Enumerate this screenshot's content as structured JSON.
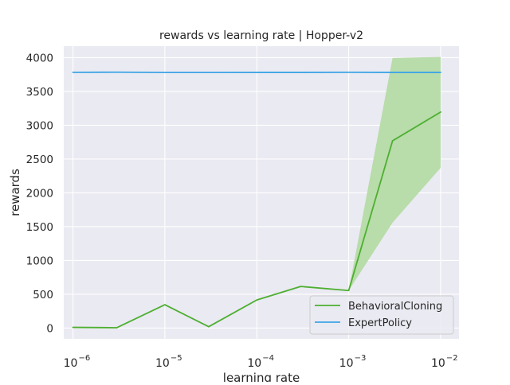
{
  "chart_data": {
    "type": "line",
    "title": "rewards vs learning rate | Hopper-v2",
    "xlabel": "learning rate",
    "ylabel": "rewards",
    "xscale": "log",
    "xlim_exp": [
      -6.1,
      -1.8
    ],
    "ylim": [
      -160,
      4170
    ],
    "x_ticks": [
      {
        "exp": -6,
        "base": "10",
        "sup": "−6"
      },
      {
        "exp": -5,
        "base": "10",
        "sup": "−5"
      },
      {
        "exp": -4,
        "base": "10",
        "sup": "−4"
      },
      {
        "exp": -3,
        "base": "10",
        "sup": "−3"
      },
      {
        "exp": -2,
        "base": "10",
        "sup": "−2"
      }
    ],
    "y_ticks": [
      0,
      500,
      1000,
      1500,
      2000,
      2500,
      3000,
      3500,
      4000
    ],
    "y_tick_labels": [
      "0",
      "500",
      "1000",
      "1500",
      "2000",
      "2500",
      "3000",
      "3500",
      "4000"
    ],
    "x": [
      1e-06,
      3e-06,
      1e-05,
      3e-05,
      0.0001,
      0.0003,
      0.001,
      0.003,
      0.01
    ],
    "series": [
      {
        "name": "BehavioralCloning",
        "color": "#4daf30",
        "values": [
          10,
          5,
          345,
          20,
          415,
          615,
          555,
          2770,
          3195
        ],
        "band_lower": [
          10,
          5,
          345,
          20,
          415,
          615,
          555,
          1560,
          2370
        ],
        "band_upper": [
          10,
          5,
          345,
          20,
          415,
          615,
          555,
          3995,
          4010
        ],
        "band_color": "#b8dcaa"
      },
      {
        "name": "ExpertPolicy",
        "color": "#3fa5e5",
        "values": [
          3782,
          3785,
          3780,
          3780,
          3781,
          3781,
          3783,
          3781,
          3781
        ]
      }
    ],
    "grid": true,
    "legend_position": "lower-right",
    "background_color": "#eaeaf2",
    "grid_color": "#ffffff"
  }
}
